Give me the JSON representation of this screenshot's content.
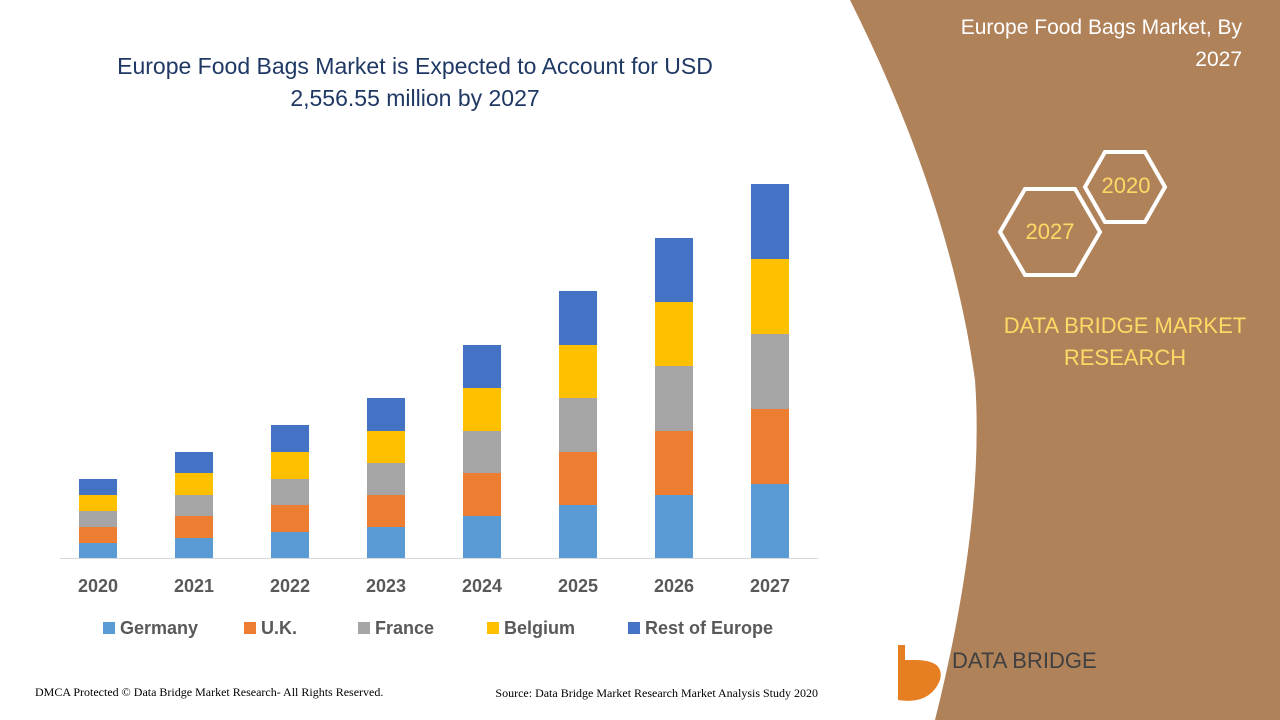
{
  "chart_data": {
    "type": "stacked-bar",
    "title": "Europe Food Bags Market is Expected to Account for USD 2,556.55 million by 2027",
    "categories": [
      "2020",
      "2021",
      "2022",
      "2023",
      "2024",
      "2025",
      "2026",
      "2027"
    ],
    "series": [
      {
        "name": "Germany",
        "color": "#5b9bd5",
        "values": [
          15,
          20,
          26,
          31,
          42,
          53,
          63,
          74
        ]
      },
      {
        "name": "U.K.",
        "color": "#ed7d31",
        "values": [
          16,
          22,
          27,
          32,
          43,
          53,
          64,
          75
        ]
      },
      {
        "name": "France",
        "color": "#a5a5a5",
        "values": [
          16,
          21,
          26,
          32,
          42,
          54,
          65,
          75
        ]
      },
      {
        "name": "Belgium",
        "color": "#ffc000",
        "values": [
          16,
          22,
          27,
          32,
          43,
          53,
          64,
          75
        ]
      },
      {
        "name": "Rest of Europe",
        "color": "#4472c4",
        "values": [
          16,
          21,
          27,
          33,
          43,
          54,
          64,
          75
        ]
      }
    ]
  },
  "panel": {
    "title": "Europe Food Bags Market, By 2027",
    "hex_front": "2027",
    "hex_back": "2020",
    "brand": "DATA BRIDGE MARKET RESEARCH",
    "logo": "DATA BRIDGE"
  },
  "footer": {
    "left": "DMCA Protected © Data Bridge Market Research- All Rights Reserved.",
    "right": "Source: Data Bridge Market Research Market Analysis Study 2020"
  }
}
